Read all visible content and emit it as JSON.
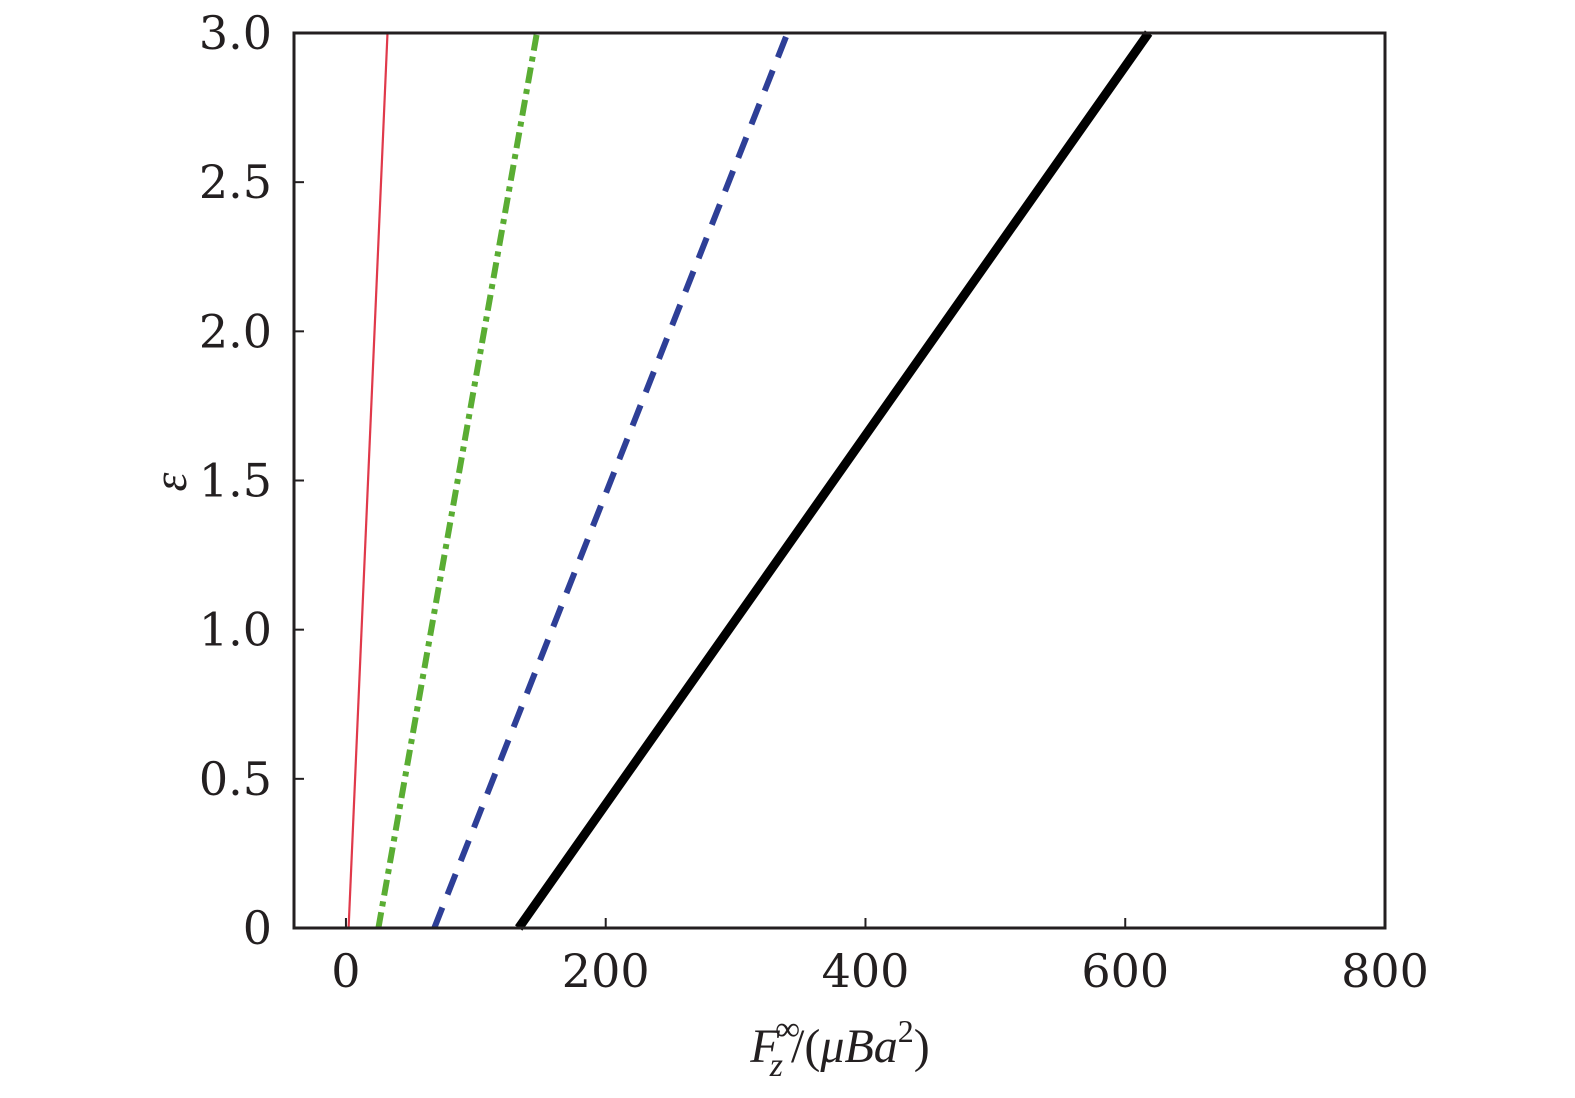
{
  "chart_data": {
    "type": "line",
    "title": "",
    "xlabel": {
      "symbol": "F",
      "subscript": "z",
      "superscript": "∞",
      "rest_open": "/(",
      "mu": "μ",
      "B": "B",
      "a": "a",
      "a_exp": "2",
      "rest_close": ")"
    },
    "ylabel": "ε",
    "xlim": [
      -40,
      800
    ],
    "ylim": [
      0,
      3.0
    ],
    "x_ticks": [
      0,
      200,
      400,
      600,
      800
    ],
    "x_tick_labels": [
      "0",
      "200",
      "400",
      "600",
      "800"
    ],
    "y_ticks": [
      0,
      0.5,
      1.0,
      1.5,
      2.0,
      2.5,
      3.0
    ],
    "y_tick_labels": [
      "0",
      "0.5",
      "1.0",
      "1.5",
      "2.0",
      "2.5",
      "3.0"
    ],
    "grid": false,
    "series": [
      {
        "x": [
          2,
          32
        ],
        "y": [
          0,
          3.0
        ],
        "color": "#e0394a",
        "style": "solid-thin"
      },
      {
        "x": [
          25,
          147
        ],
        "y": [
          0,
          3.0
        ],
        "color": "#5aad33",
        "style": "dash-dot"
      },
      {
        "x": [
          68,
          340
        ],
        "y": [
          0,
          3.0
        ],
        "color": "#2e3f97",
        "style": "dashed"
      },
      {
        "x": [
          133,
          618
        ],
        "y": [
          0,
          3.0
        ],
        "color": "#000000",
        "style": "solid-thick"
      }
    ]
  }
}
